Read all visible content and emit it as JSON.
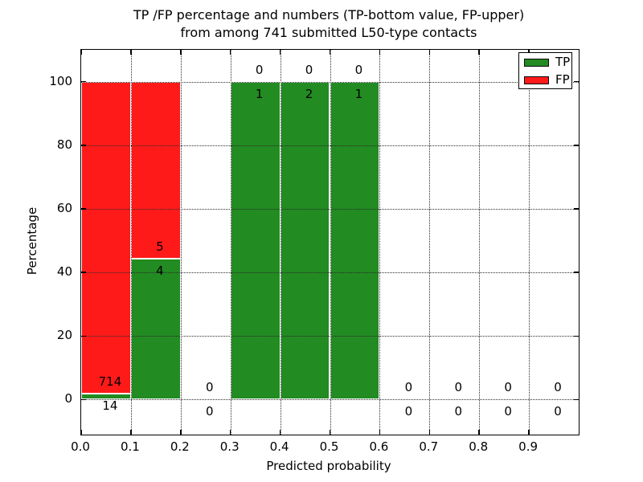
{
  "chart_data": {
    "type": "bar",
    "stacked": true,
    "title_line1": "TP /FP percentage and numbers (TP-bottom value, FP-upper)",
    "title_line2": "from among 741 submitted L50-type contacts",
    "total_contacts": 741,
    "xlabel": "Predicted probability",
    "ylabel": "Percentage",
    "xlim": [
      0.0,
      1.0
    ],
    "ylim": [
      -11,
      110
    ],
    "grid": true,
    "x_ticks": [
      {
        "v": 0.0,
        "label": "0.0"
      },
      {
        "v": 0.1,
        "label": "0.1"
      },
      {
        "v": 0.2,
        "label": "0.2"
      },
      {
        "v": 0.3,
        "label": "0.3"
      },
      {
        "v": 0.4,
        "label": "0.4"
      },
      {
        "v": 0.5,
        "label": "0.5"
      },
      {
        "v": 0.6,
        "label": "0.6"
      },
      {
        "v": 0.7,
        "label": "0.7"
      },
      {
        "v": 0.8,
        "label": "0.8"
      },
      {
        "v": 0.9,
        "label": "0.9"
      }
    ],
    "y_ticks": [
      {
        "v": 0,
        "label": "0"
      },
      {
        "v": 20,
        "label": "20"
      },
      {
        "v": 40,
        "label": "40"
      },
      {
        "v": 60,
        "label": "60"
      },
      {
        "v": 80,
        "label": "80"
      },
      {
        "v": 100,
        "label": "100"
      }
    ],
    "bins": [
      {
        "range": [
          0.0,
          0.1
        ],
        "tp_count": 14,
        "fp_count": 714,
        "tp_pct": 1.92,
        "fp_pct": 98.08
      },
      {
        "range": [
          0.1,
          0.2
        ],
        "tp_count": 4,
        "fp_count": 5,
        "tp_pct": 44.44,
        "fp_pct": 55.56
      },
      {
        "range": [
          0.2,
          0.3
        ],
        "tp_count": 0,
        "fp_count": 0,
        "tp_pct": 0,
        "fp_pct": 0
      },
      {
        "range": [
          0.3,
          0.4
        ],
        "tp_count": 1,
        "fp_count": 0,
        "tp_pct": 100,
        "fp_pct": 0
      },
      {
        "range": [
          0.4,
          0.5
        ],
        "tp_count": 2,
        "fp_count": 0,
        "tp_pct": 100,
        "fp_pct": 0
      },
      {
        "range": [
          0.5,
          0.6
        ],
        "tp_count": 1,
        "fp_count": 0,
        "tp_pct": 100,
        "fp_pct": 0
      },
      {
        "range": [
          0.6,
          0.7
        ],
        "tp_count": 0,
        "fp_count": 0,
        "tp_pct": 0,
        "fp_pct": 0
      },
      {
        "range": [
          0.7,
          0.8
        ],
        "tp_count": 0,
        "fp_count": 0,
        "tp_pct": 0,
        "fp_pct": 0
      },
      {
        "range": [
          0.8,
          0.9
        ],
        "tp_count": 0,
        "fp_count": 0,
        "tp_pct": 0,
        "fp_pct": 0
      },
      {
        "range": [
          0.9,
          1.0
        ],
        "tp_count": 0,
        "fp_count": 0,
        "tp_pct": 0,
        "fp_pct": 0
      }
    ],
    "legend": {
      "position": "upper right",
      "entries": [
        {
          "label": "TP",
          "color": "#228B22"
        },
        {
          "label": "FP",
          "color": "#FF1A1A"
        }
      ]
    },
    "colors": {
      "tp": "#228B22",
      "fp": "#FF1A1A",
      "grid": "#2b2b2b",
      "text": "#000000"
    }
  }
}
